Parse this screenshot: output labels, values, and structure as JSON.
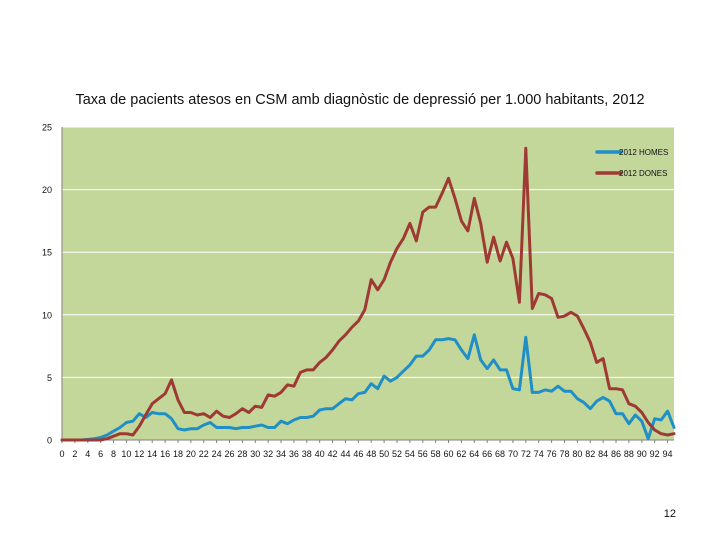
{
  "page": {
    "number": "12"
  },
  "colors": {
    "plot_bg": "#c4d79b",
    "grid": "#ffffff",
    "homes": "#1f8fc6",
    "dones": "#9e3a33"
  },
  "chart_data": {
    "type": "line",
    "title": "Taxa de pacients atesos en CSM amb diagnòstic de depressió per 1.000 habitants, 2012",
    "xlabel": "",
    "ylabel": "",
    "ylim": [
      0,
      25
    ],
    "yticks": [
      0,
      5,
      10,
      15,
      20,
      25
    ],
    "xlim": [
      0,
      95
    ],
    "xticks": [
      0,
      2,
      4,
      6,
      8,
      10,
      12,
      14,
      16,
      18,
      20,
      22,
      24,
      26,
      28,
      30,
      32,
      34,
      36,
      38,
      40,
      42,
      44,
      46,
      48,
      50,
      52,
      54,
      56,
      58,
      60,
      62,
      64,
      66,
      68,
      70,
      72,
      74,
      76,
      78,
      80,
      82,
      84,
      86,
      88,
      90,
      92,
      94
    ],
    "grid": true,
    "legend_position": "top-right",
    "x": [
      0,
      1,
      2,
      3,
      4,
      5,
      6,
      7,
      8,
      9,
      10,
      11,
      12,
      13,
      14,
      15,
      16,
      17,
      18,
      19,
      20,
      21,
      22,
      23,
      24,
      25,
      26,
      27,
      28,
      29,
      30,
      31,
      32,
      33,
      34,
      35,
      36,
      37,
      38,
      39,
      40,
      41,
      42,
      43,
      44,
      45,
      46,
      47,
      48,
      49,
      50,
      51,
      52,
      53,
      54,
      55,
      56,
      57,
      58,
      59,
      60,
      61,
      62,
      63,
      64,
      65,
      66,
      67,
      68,
      69,
      70,
      71,
      72,
      73,
      74,
      75,
      76,
      77,
      78,
      79,
      80,
      81,
      82,
      83,
      84,
      85,
      86,
      87,
      88,
      89,
      90,
      91,
      92,
      93,
      94,
      95
    ],
    "series": [
      {
        "name": "2012 HOMES",
        "color": "#1f8fc6",
        "values": [
          0,
          0,
          0,
          0,
          0.05,
          0.1,
          0.2,
          0.4,
          0.7,
          1,
          1.4,
          1.5,
          2.1,
          1.8,
          2.2,
          2.1,
          2.1,
          1.7,
          0.9,
          0.8,
          0.9,
          0.9,
          1.2,
          1.4,
          1,
          1,
          1,
          0.9,
          1,
          1,
          1.1,
          1.2,
          1,
          1,
          1.5,
          1.3,
          1.6,
          1.8,
          1.8,
          1.9,
          2.4,
          2.5,
          2.5,
          2.9,
          3.3,
          3.2,
          3.7,
          3.8,
          4.5,
          4.1,
          5.1,
          4.7,
          5,
          5.5,
          6,
          6.7,
          6.7,
          7.2,
          8,
          8,
          8.1,
          8,
          7.2,
          6.5,
          8.4,
          6.4,
          5.7,
          6.4,
          5.6,
          5.6,
          4.1,
          4,
          8.2,
          3.8,
          3.8,
          4,
          3.9,
          4.3,
          3.9,
          3.9,
          3.3,
          3,
          2.5,
          3.1,
          3.4,
          3.1,
          2.1,
          2.1,
          1.3,
          2,
          1.5,
          0.1,
          1.7,
          1.6,
          2.3,
          1
        ]
      },
      {
        "name": "2012 DONES",
        "color": "#9e3a33",
        "values": [
          0,
          0,
          0,
          0,
          0,
          0,
          0,
          0.1,
          0.3,
          0.5,
          0.5,
          0.4,
          1.1,
          2,
          2.9,
          3.3,
          3.7,
          4.8,
          3.2,
          2.2,
          2.2,
          2,
          2.1,
          1.8,
          2.3,
          1.9,
          1.8,
          2.1,
          2.5,
          2.2,
          2.7,
          2.6,
          3.6,
          3.5,
          3.8,
          4.4,
          4.3,
          5.4,
          5.6,
          5.6,
          6.2,
          6.6,
          7.2,
          7.9,
          8.4,
          9,
          9.5,
          10.4,
          12.8,
          12,
          12.8,
          14.2,
          15.3,
          16.1,
          17.3,
          15.9,
          18.2,
          18.6,
          18.6,
          19.7,
          20.9,
          19.3,
          17.5,
          16.7,
          19.3,
          17.3,
          14.2,
          16.2,
          14.3,
          15.8,
          14.5,
          11,
          23.3,
          10.5,
          11.7,
          11.6,
          11.3,
          9.8,
          9.9,
          10.2,
          9.9,
          8.9,
          7.8,
          6.2,
          6.5,
          4.1,
          4.1,
          4,
          2.9,
          2.7,
          2.2,
          1.4,
          0.8,
          0.5,
          0.4,
          0.5
        ]
      }
    ]
  }
}
